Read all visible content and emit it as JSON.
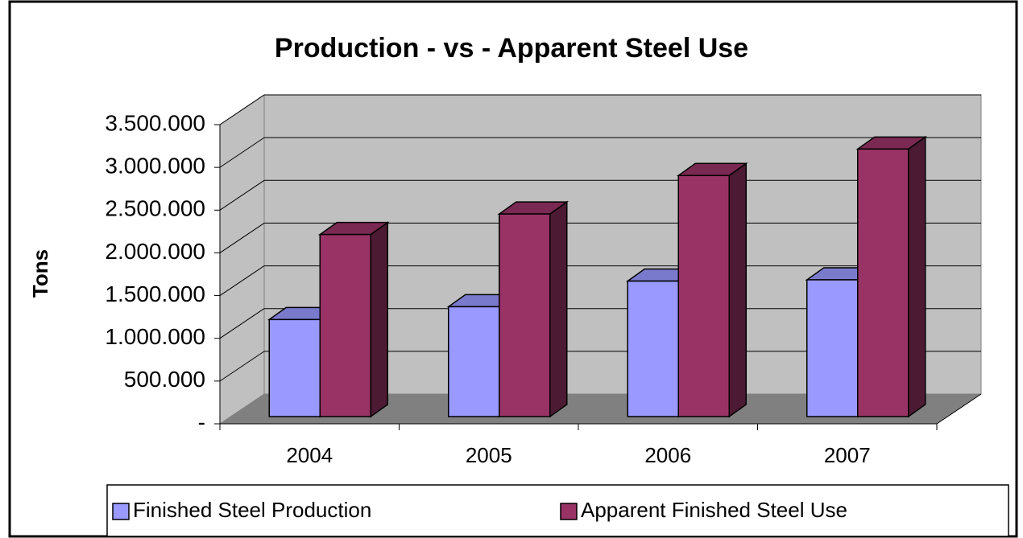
{
  "chart_data": {
    "type": "bar3d",
    "title": "Production - vs - Apparent Steel Use",
    "y_label": "Tons",
    "categories": [
      "2004",
      "2005",
      "2006",
      "2007"
    ],
    "series": [
      {
        "name": "Finished Steel Production",
        "color": "#9999ff",
        "values": [
          1135000,
          1285000,
          1585000,
          1600000
        ]
      },
      {
        "name": "Apparent Finished Steel Use",
        "color": "#993366",
        "values": [
          2130000,
          2370000,
          2820000,
          3130000
        ]
      }
    ],
    "ylim": [
      0,
      3500000
    ],
    "yticks": [
      {
        "value": 0,
        "label": "-"
      },
      {
        "value": 500000,
        "label": "500.000"
      },
      {
        "value": 1000000,
        "label": "1.000.000"
      },
      {
        "value": 1500000,
        "label": "1.500.000"
      },
      {
        "value": 2000000,
        "label": "2.000.000"
      },
      {
        "value": 2500000,
        "label": "2.500.000"
      },
      {
        "value": 3000000,
        "label": "3.000.000"
      },
      {
        "value": 3500000,
        "label": "3.500.000"
      }
    ],
    "grid": true,
    "legend": "bottom"
  }
}
